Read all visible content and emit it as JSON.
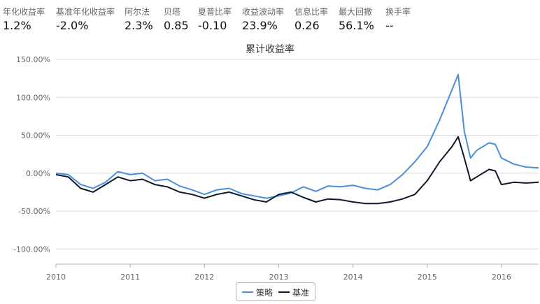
{
  "stats": [
    {
      "label": "年化收益率",
      "value": "1.2%"
    },
    {
      "label": "基准年化收益率",
      "value": "-2.0%"
    },
    {
      "label": "阿尔法",
      "value": "2.3%"
    },
    {
      "label": "贝塔",
      "value": "0.85"
    },
    {
      "label": "夏普比率",
      "value": "-0.10"
    },
    {
      "label": "收益波动率",
      "value": "23.9%"
    },
    {
      "label": "信息比率",
      "value": "0.26"
    },
    {
      "label": "最大回撤",
      "value": "56.1%"
    },
    {
      "label": "换手率",
      "value": "--"
    }
  ],
  "chart_data": {
    "type": "line",
    "title": "累计收益率",
    "xlabel": "",
    "ylabel": "",
    "x_ticks": [
      "2010",
      "2011",
      "2012",
      "2013",
      "2014",
      "2015",
      "2016"
    ],
    "y_ticks": [
      "150.00%",
      "100.00%",
      "50.00%",
      "0.00%",
      "-50.00%",
      "-100.00%"
    ],
    "ylim": [
      -120,
      150
    ],
    "xlim": [
      "2010-01",
      "2016-07"
    ],
    "grid": true,
    "legend_position": "bottom-center",
    "series": [
      {
        "name": "策略",
        "color": "#4a8fdc",
        "points": [
          [
            "2010-01",
            0
          ],
          [
            "2010-03",
            -2
          ],
          [
            "2010-05",
            -15
          ],
          [
            "2010-07",
            -20
          ],
          [
            "2010-09",
            -12
          ],
          [
            "2010-11",
            2
          ],
          [
            "2011-01",
            -2
          ],
          [
            "2011-03",
            0
          ],
          [
            "2011-05",
            -10
          ],
          [
            "2011-07",
            -8
          ],
          [
            "2011-09",
            -17
          ],
          [
            "2011-11",
            -22
          ],
          [
            "2012-01",
            -28
          ],
          [
            "2012-03",
            -22
          ],
          [
            "2012-05",
            -20
          ],
          [
            "2012-07",
            -27
          ],
          [
            "2012-09",
            -30
          ],
          [
            "2012-11",
            -33
          ],
          [
            "2013-01",
            -30
          ],
          [
            "2013-03",
            -26
          ],
          [
            "2013-05",
            -18
          ],
          [
            "2013-07",
            -24
          ],
          [
            "2013-09",
            -17
          ],
          [
            "2013-11",
            -18
          ],
          [
            "2014-01",
            -16
          ],
          [
            "2014-03",
            -20
          ],
          [
            "2014-05",
            -22
          ],
          [
            "2014-07",
            -15
          ],
          [
            "2014-09",
            -2
          ],
          [
            "2014-11",
            15
          ],
          [
            "2015-01",
            35
          ],
          [
            "2015-03",
            70
          ],
          [
            "2015-05",
            110
          ],
          [
            "2015-06",
            130
          ],
          [
            "2015-07",
            55
          ],
          [
            "2015-08",
            20
          ],
          [
            "2015-09",
            30
          ],
          [
            "2015-11",
            40
          ],
          [
            "2015-12",
            38
          ],
          [
            "2016-01",
            20
          ],
          [
            "2016-03",
            12
          ],
          [
            "2016-05",
            8
          ],
          [
            "2016-07",
            7
          ]
        ]
      },
      {
        "name": "基准",
        "color": "#0d1a2b",
        "points": [
          [
            "2010-01",
            -2
          ],
          [
            "2010-03",
            -5
          ],
          [
            "2010-05",
            -20
          ],
          [
            "2010-07",
            -25
          ],
          [
            "2010-09",
            -15
          ],
          [
            "2010-11",
            -5
          ],
          [
            "2011-01",
            -10
          ],
          [
            "2011-03",
            -8
          ],
          [
            "2011-05",
            -15
          ],
          [
            "2011-07",
            -18
          ],
          [
            "2011-09",
            -25
          ],
          [
            "2011-11",
            -28
          ],
          [
            "2012-01",
            -33
          ],
          [
            "2012-03",
            -28
          ],
          [
            "2012-05",
            -25
          ],
          [
            "2012-07",
            -30
          ],
          [
            "2012-09",
            -35
          ],
          [
            "2012-11",
            -38
          ],
          [
            "2013-01",
            -28
          ],
          [
            "2013-03",
            -25
          ],
          [
            "2013-05",
            -32
          ],
          [
            "2013-07",
            -38
          ],
          [
            "2013-09",
            -34
          ],
          [
            "2013-11",
            -35
          ],
          [
            "2014-01",
            -38
          ],
          [
            "2014-03",
            -40
          ],
          [
            "2014-05",
            -40
          ],
          [
            "2014-07",
            -38
          ],
          [
            "2014-09",
            -34
          ],
          [
            "2014-11",
            -28
          ],
          [
            "2015-01",
            -10
          ],
          [
            "2015-03",
            15
          ],
          [
            "2015-05",
            35
          ],
          [
            "2015-06",
            48
          ],
          [
            "2015-07",
            20
          ],
          [
            "2015-08",
            -10
          ],
          [
            "2015-09",
            -5
          ],
          [
            "2015-11",
            5
          ],
          [
            "2015-12",
            3
          ],
          [
            "2016-01",
            -15
          ],
          [
            "2016-03",
            -12
          ],
          [
            "2016-05",
            -13
          ],
          [
            "2016-07",
            -12
          ]
        ]
      }
    ]
  }
}
